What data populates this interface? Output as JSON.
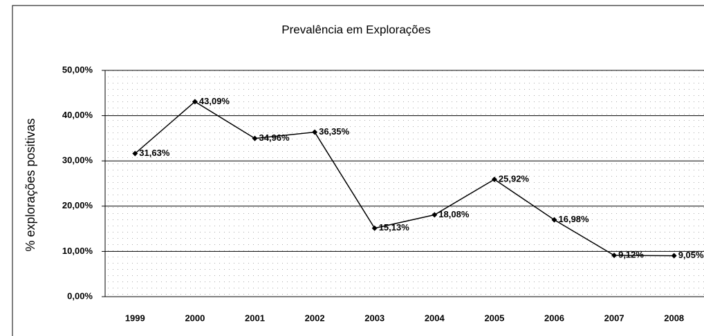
{
  "chart_data": {
    "type": "line",
    "title": "Prevalência em Explorações",
    "y_label": "% explorações positivas",
    "categories": [
      "1999",
      "2000",
      "2001",
      "2002",
      "2003",
      "2004",
      "2005",
      "2006",
      "2007",
      "2008"
    ],
    "series": [
      {
        "name": "Prevalência",
        "color": "#000000",
        "values": [
          31.63,
          43.09,
          34.96,
          36.35,
          15.13,
          18.08,
          25.92,
          16.98,
          9.12,
          9.05
        ],
        "value_labels": [
          "31,63%",
          "43,09%",
          "34,96%",
          "36,35%",
          "15,13%",
          "18,08%",
          "25,92%",
          "16,98%",
          "9,12%",
          "9,05%"
        ]
      }
    ],
    "ylim": [
      0,
      50
    ],
    "yticks": [
      {
        "value": 0,
        "label": "0,00%"
      },
      {
        "value": 10,
        "label": "10,00%"
      },
      {
        "value": 20,
        "label": "20,00%"
      },
      {
        "value": 30,
        "label": "30,00%"
      },
      {
        "value": 40,
        "label": "40,00%"
      },
      {
        "value": 50,
        "label": "50,00%"
      }
    ],
    "grid": true
  }
}
